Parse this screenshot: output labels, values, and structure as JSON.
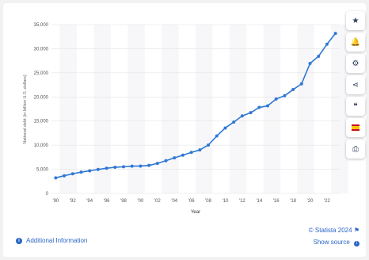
{
  "chart_data": {
    "type": "line",
    "title": "",
    "xlabel": "Year",
    "ylabel": "National debt (in billion U.S. dollars)",
    "x": [
      1990,
      1991,
      1992,
      1993,
      1994,
      1995,
      1996,
      1997,
      1998,
      1999,
      2000,
      2001,
      2002,
      2003,
      2004,
      2005,
      2006,
      2007,
      2008,
      2009,
      2010,
      2011,
      2012,
      2013,
      2014,
      2015,
      2016,
      2017,
      2018,
      2019,
      2020,
      2021,
      2022,
      2023
    ],
    "series": [
      {
        "values": [
          3233,
          3665,
          4065,
          4411,
          4693,
          4974,
          5225,
          5413,
          5526,
          5656,
          5674,
          5807,
          6228,
          6783,
          7379,
          7933,
          8507,
          9008,
          10025,
          11910,
          13562,
          14790,
          16066,
          16738,
          17824,
          18151,
          19573,
          20245,
          21516,
          22719,
          26945,
          28428,
          30928,
          33167
        ]
      }
    ],
    "x_tick_labels": [
      "'90",
      "'92",
      "'94",
      "'96",
      "'98",
      "'00",
      "'02",
      "'04",
      "'06",
      "'08",
      "'10",
      "'12",
      "'14",
      "'16",
      "'18",
      "'20",
      "'22"
    ],
    "y_ticks": [
      0,
      5000,
      10000,
      15000,
      20000,
      25000,
      30000,
      35000
    ],
    "y_tick_labels": [
      "0",
      "5,000",
      "10,000",
      "15,000",
      "20,000",
      "25,000",
      "30,000",
      "35,000"
    ],
    "xlim": [
      1989.5,
      2023.5
    ],
    "ylim": [
      0,
      35000
    ],
    "grid": true,
    "legend": "none",
    "line_color": "#2f78d4"
  },
  "sidebar": {
    "buttons": [
      {
        "name": "star-icon",
        "glyph": "★"
      },
      {
        "name": "bell-icon",
        "glyph": "🔔"
      },
      {
        "name": "gear-icon",
        "glyph": "⚙"
      },
      {
        "name": "share-icon",
        "glyph": "⋖"
      },
      {
        "name": "quote-icon",
        "glyph": "❝"
      },
      {
        "name": "flag-icon",
        "glyph": ""
      },
      {
        "name": "print-icon",
        "glyph": "⎙"
      }
    ]
  },
  "footer": {
    "additional_info": "Additional Information",
    "credit": "© Statista 2024",
    "show_source": "Show source"
  }
}
